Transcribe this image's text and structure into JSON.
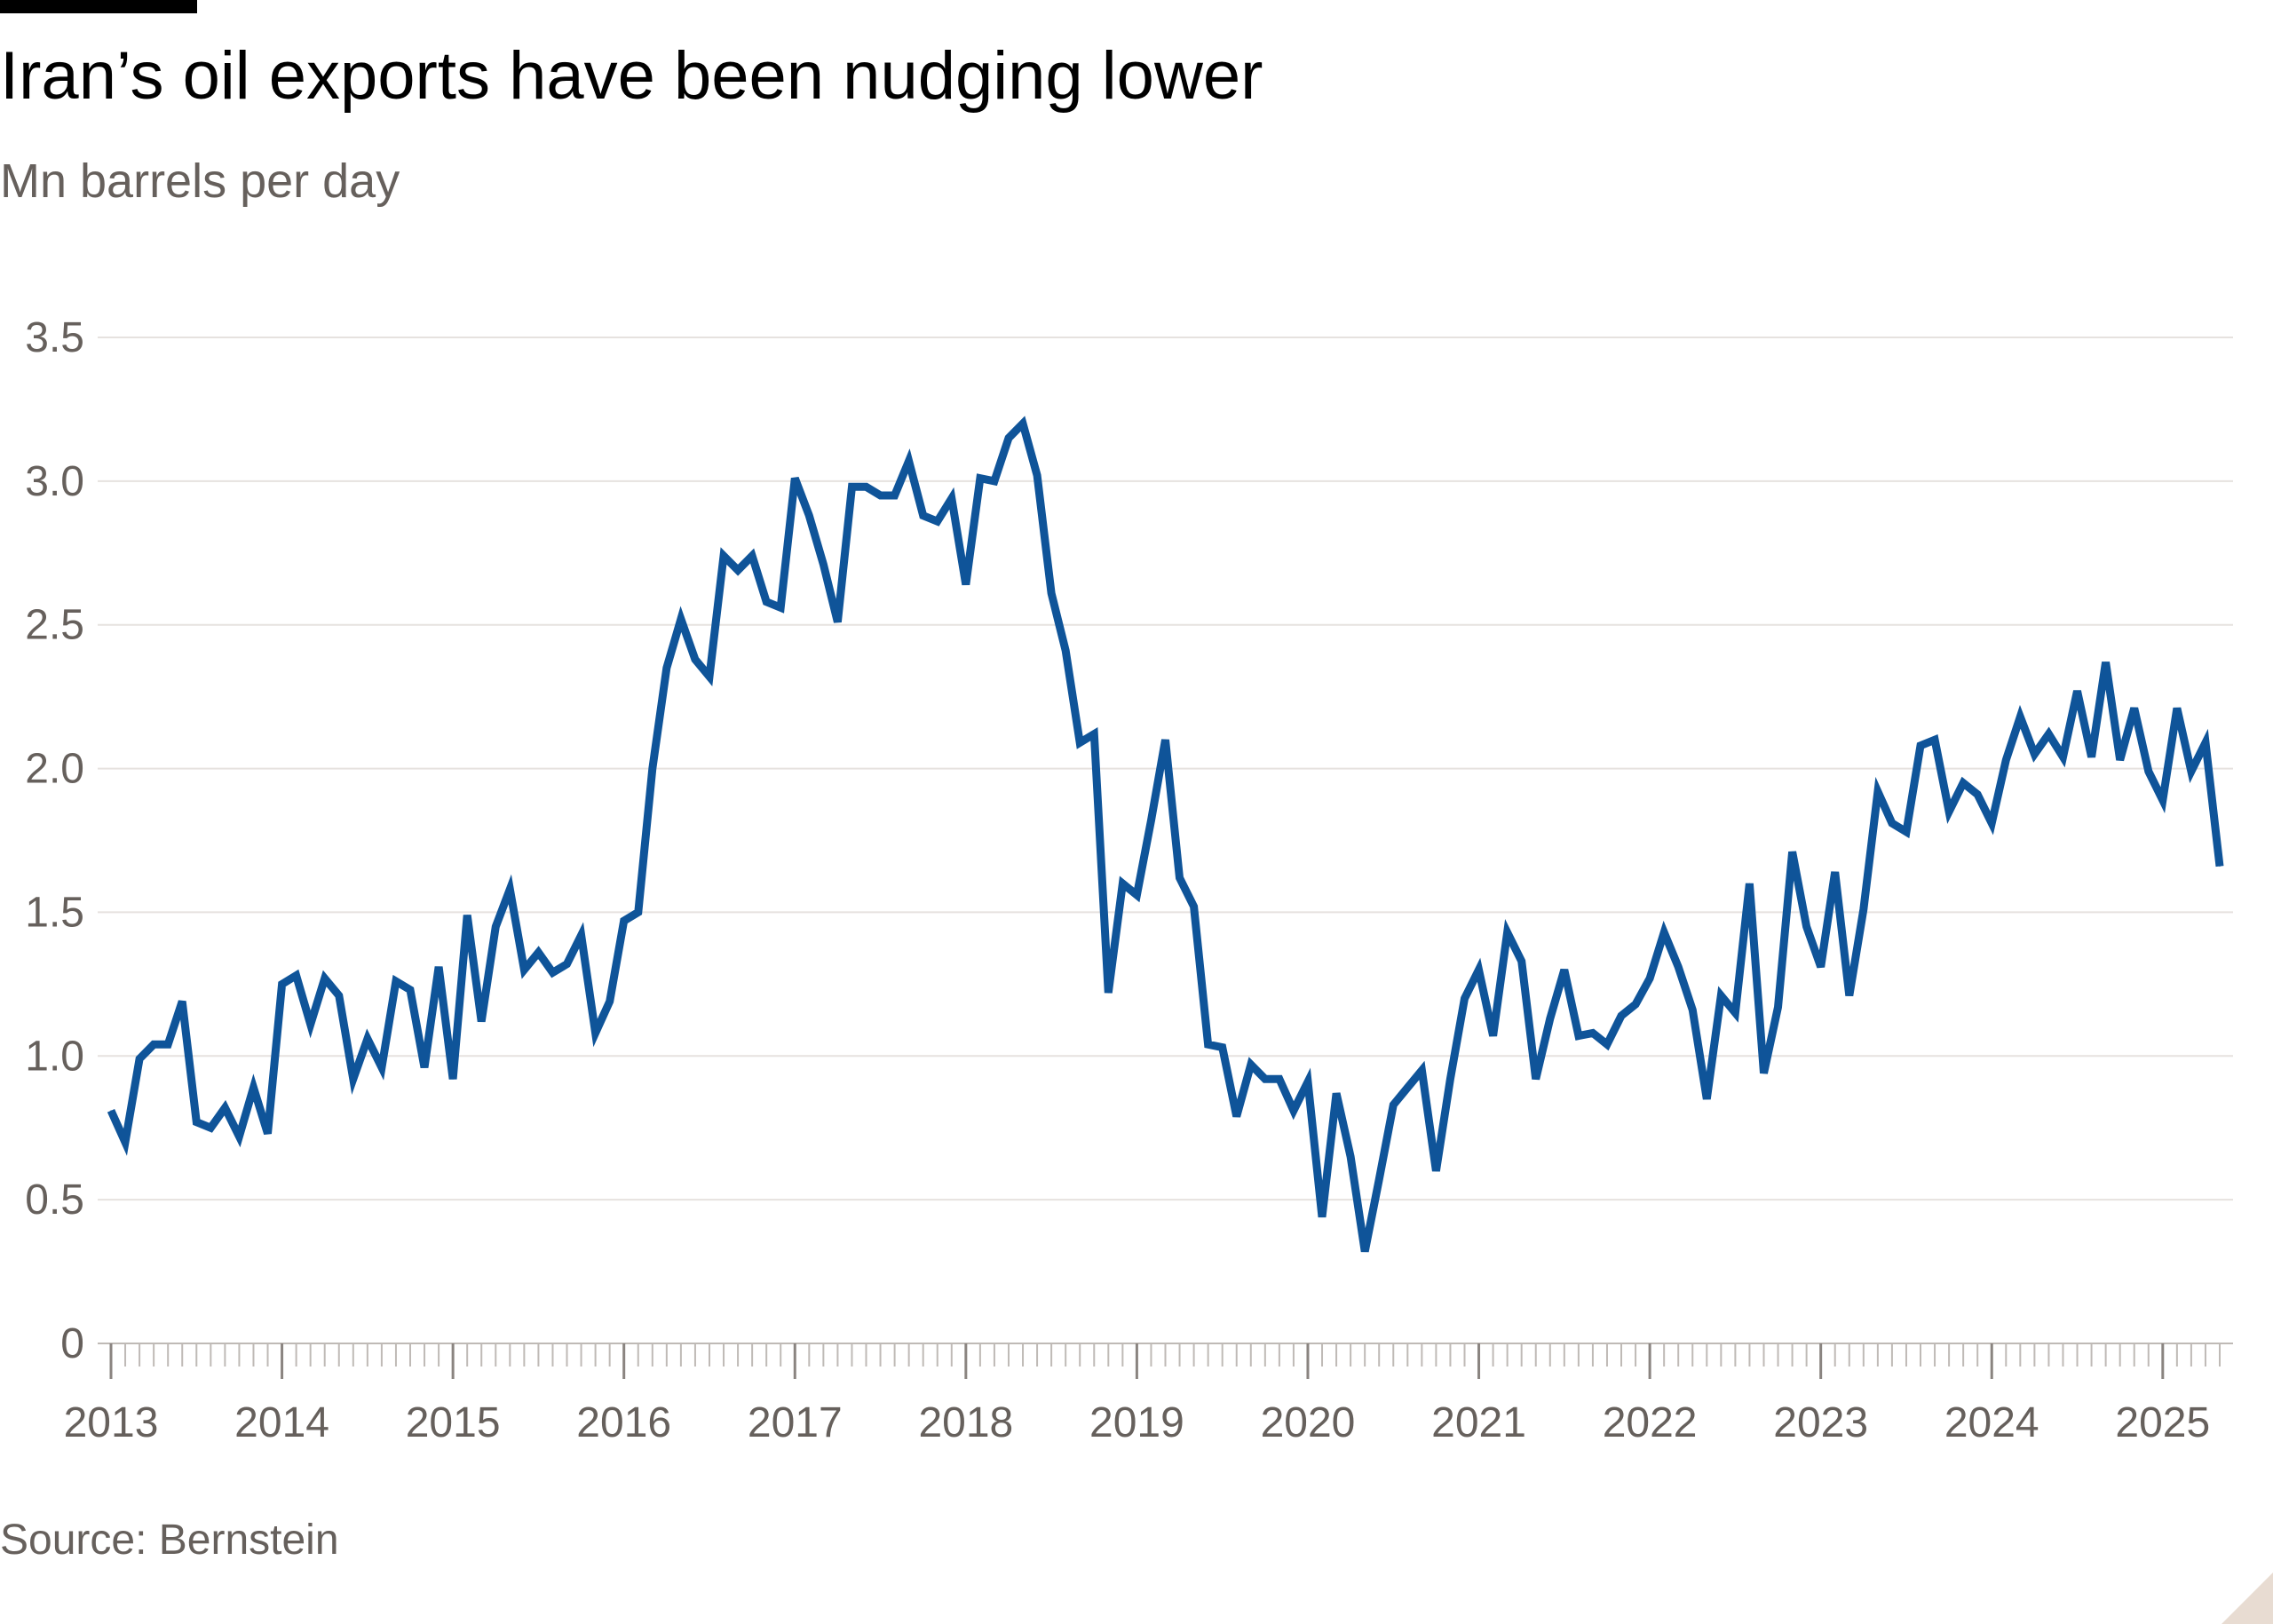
{
  "title": "Iran’s oil exports have been nudging lower",
  "subtitle": "Mn barrels per day",
  "source": "Source: Bernstein",
  "colors": {
    "line": "#0f5499",
    "grid": "#e6e2df",
    "axis": "#bfbab6",
    "text": "#66605c"
  },
  "chart_data": {
    "type": "line",
    "title": "Iran’s oil exports have been nudging lower",
    "ylabel": "Mn barrels per day",
    "xlabel": "",
    "grid": true,
    "ylim": [
      0,
      3.5
    ],
    "xlim": [
      "2013-01",
      "2025-05"
    ],
    "y_ticks": [
      "0",
      "0.5",
      "1.0",
      "1.5",
      "2.0",
      "2.5",
      "3.0",
      "3.5"
    ],
    "x_ticks": [
      "2013",
      "2014",
      "2015",
      "2016",
      "2017",
      "2018",
      "2019",
      "2020",
      "2021",
      "2022",
      "2023",
      "2024",
      "2025"
    ],
    "series": [
      {
        "x": [
          "2013-01",
          "2013-02",
          "2013-03",
          "2013-04",
          "2013-05",
          "2013-06",
          "2013-07",
          "2013-08",
          "2013-09",
          "2013-10",
          "2013-11",
          "2013-12",
          "2014-01",
          "2014-02",
          "2014-03",
          "2014-04",
          "2014-05",
          "2014-06",
          "2014-07",
          "2014-08",
          "2014-09",
          "2014-10",
          "2014-11",
          "2014-12",
          "2015-01",
          "2015-02",
          "2015-03",
          "2015-04",
          "2015-05",
          "2015-06",
          "2015-07",
          "2015-08",
          "2015-09",
          "2015-10",
          "2015-11",
          "2015-12",
          "2016-01",
          "2016-02",
          "2016-03",
          "2016-04",
          "2016-05",
          "2016-06",
          "2016-07",
          "2016-08",
          "2016-09",
          "2016-10",
          "2016-11",
          "2016-12",
          "2017-01",
          "2017-02",
          "2017-03",
          "2017-04",
          "2017-05",
          "2017-06",
          "2017-07",
          "2017-08",
          "2017-09",
          "2017-10",
          "2017-11",
          "2017-12",
          "2018-01",
          "2018-02",
          "2018-03",
          "2018-04",
          "2018-05",
          "2018-06",
          "2018-07",
          "2018-08",
          "2018-09",
          "2018-10",
          "2018-11",
          "2018-12",
          "2019-01",
          "2019-02",
          "2019-03",
          "2019-04",
          "2019-05",
          "2019-06",
          "2019-07",
          "2019-08",
          "2019-09",
          "2019-10",
          "2019-11",
          "2019-12",
          "2020-01",
          "2020-02",
          "2020-03",
          "2020-04",
          "2020-05",
          "2020-06",
          "2020-07",
          "2020-08",
          "2020-09",
          "2020-10",
          "2020-11",
          "2020-12",
          "2021-01",
          "2021-02",
          "2021-03",
          "2021-04",
          "2021-05",
          "2021-06",
          "2021-07",
          "2021-08",
          "2021-09",
          "2021-10",
          "2021-11",
          "2021-12",
          "2022-01",
          "2022-02",
          "2022-03",
          "2022-04",
          "2022-05",
          "2022-06",
          "2022-07",
          "2022-08",
          "2022-09",
          "2022-10",
          "2022-11",
          "2022-12",
          "2023-01",
          "2023-02",
          "2023-03",
          "2023-04",
          "2023-05",
          "2023-06",
          "2023-07",
          "2023-08",
          "2023-09",
          "2023-10",
          "2023-11",
          "2023-12",
          "2024-01",
          "2024-02",
          "2024-03",
          "2024-04",
          "2024-05",
          "2024-06",
          "2024-07",
          "2024-08",
          "2024-09",
          "2024-10",
          "2024-11",
          "2024-12",
          "2025-01",
          "2025-02",
          "2025-03",
          "2025-04",
          "2025-05"
        ],
        "values": [
          0.81,
          0.7,
          0.99,
          1.04,
          1.04,
          1.19,
          0.77,
          0.75,
          0.82,
          0.72,
          0.89,
          0.73,
          1.25,
          1.28,
          1.11,
          1.27,
          1.21,
          0.92,
          1.06,
          0.96,
          1.26,
          1.23,
          0.96,
          1.31,
          0.92,
          1.49,
          1.12,
          1.45,
          1.58,
          1.3,
          1.36,
          1.29,
          1.32,
          1.42,
          1.08,
          1.19,
          1.47,
          1.5,
          2.0,
          2.35,
          2.52,
          2.38,
          2.32,
          2.74,
          2.69,
          2.74,
          2.58,
          2.56,
          3.01,
          2.88,
          2.71,
          2.51,
          2.98,
          2.98,
          2.95,
          2.95,
          3.07,
          2.88,
          2.86,
          2.94,
          2.64,
          3.01,
          3.0,
          3.15,
          3.2,
          3.02,
          2.61,
          2.41,
          2.09,
          2.12,
          1.22,
          1.6,
          1.56,
          1.82,
          2.1,
          1.62,
          1.52,
          1.04,
          1.03,
          0.79,
          0.97,
          0.92,
          0.92,
          0.81,
          0.91,
          0.44,
          0.87,
          0.65,
          0.32,
          0.57,
          0.83,
          0.89,
          0.95,
          0.6,
          0.92,
          1.2,
          1.3,
          1.07,
          1.43,
          1.33,
          0.92,
          1.13,
          1.3,
          1.07,
          1.08,
          1.04,
          1.14,
          1.18,
          1.27,
          1.43,
          1.31,
          1.16,
          0.85,
          1.21,
          1.15,
          1.6,
          0.94,
          1.17,
          1.71,
          1.45,
          1.31,
          1.64,
          1.21,
          1.51,
          1.92,
          1.81,
          1.78,
          2.08,
          2.1,
          1.85,
          1.95,
          1.91,
          1.81,
          2.03,
          2.18,
          2.05,
          2.12,
          2.04,
          2.27,
          2.04,
          2.37,
          2.03,
          2.21,
          1.99,
          1.89,
          2.21,
          1.99,
          2.09,
          1.66
        ]
      }
    ]
  }
}
